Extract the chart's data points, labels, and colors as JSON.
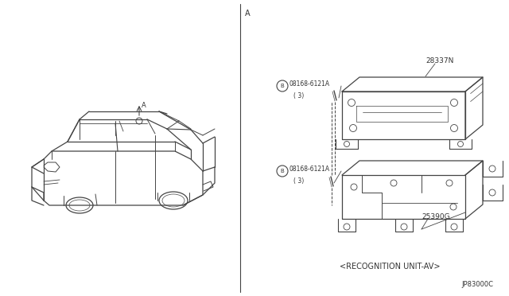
{
  "bg_color": "#ffffff",
  "line_color": "#444444",
  "text_color": "#333333",
  "fig_width": 6.4,
  "fig_height": 3.72,
  "dpi": 100,
  "part_28337N": "28337N",
  "part_25390G": "25390G",
  "bolt_label": "08168-6121A",
  "bolt_qty": "( 3)",
  "caption": "<RECOGNITION UNIT-AV>",
  "diagram_id": "JP83000C"
}
